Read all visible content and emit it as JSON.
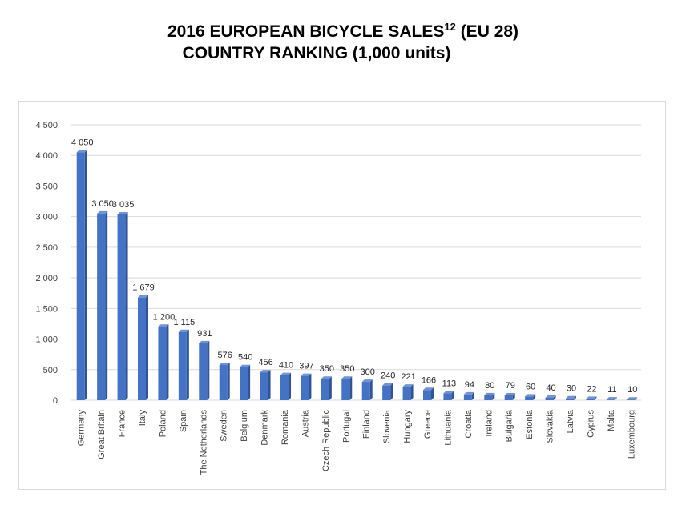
{
  "title": {
    "line1_main": "2016 EUROPEAN BICYCLE SALES",
    "line1_sup": "12",
    "line1_tail": " (EU 28)",
    "line2": "COUNTRY RANKING (1,000 units)"
  },
  "chart_data": {
    "type": "bar",
    "title": "2016 EUROPEAN BICYCLE SALES12 (EU 28) COUNTRY RANKING (1,000 units)",
    "categories": [
      "Germany",
      "Great Britain",
      "France",
      "Italy",
      "Poland",
      "Spain",
      "The Netherlands",
      "Sweden",
      "Belgium",
      "Denmark",
      "Romania",
      "Austria",
      "Czech Republic",
      "Portugal",
      "Finland",
      "Slovenia",
      "Hungary",
      "Greece",
      "Lithuania",
      "Croatia",
      "Ireland",
      "Bulgaria",
      "Estonia",
      "Slovakia",
      "Latvia",
      "Cyprus",
      "Malta",
      "Luxembourg"
    ],
    "values": [
      4050,
      3050,
      3035,
      1679,
      1200,
      1115,
      931,
      576,
      540,
      456,
      410,
      397,
      350,
      350,
      300,
      240,
      221,
      166,
      113,
      94,
      80,
      79,
      60,
      40,
      30,
      22,
      11,
      10
    ],
    "value_labels": [
      "4 050",
      "3 050",
      "3 035",
      "1 679",
      "1 200",
      "1 115",
      "931",
      "576",
      "540",
      "456",
      "410",
      "397",
      "350",
      "350",
      "300",
      "240",
      "221",
      "166",
      "113",
      "94",
      "80",
      "79",
      "60",
      "40",
      "30",
      "22",
      "11",
      "10"
    ],
    "yticks": [
      0,
      500,
      1000,
      1500,
      2000,
      2500,
      3000,
      3500,
      4000,
      4500
    ],
    "ytick_labels": [
      "0",
      "500",
      "1 000",
      "1 500",
      "2 000",
      "2 500",
      "3 000",
      "3 500",
      "4 000",
      "4 500"
    ],
    "ylim": [
      0,
      4500
    ],
    "xlabel": "",
    "ylabel": "",
    "grid": true,
    "bar_color": "#4472c4",
    "bar_side_color": "#2f5597",
    "bar_top_color": "#6f93d6",
    "grid_color": "#d9d9d9"
  }
}
